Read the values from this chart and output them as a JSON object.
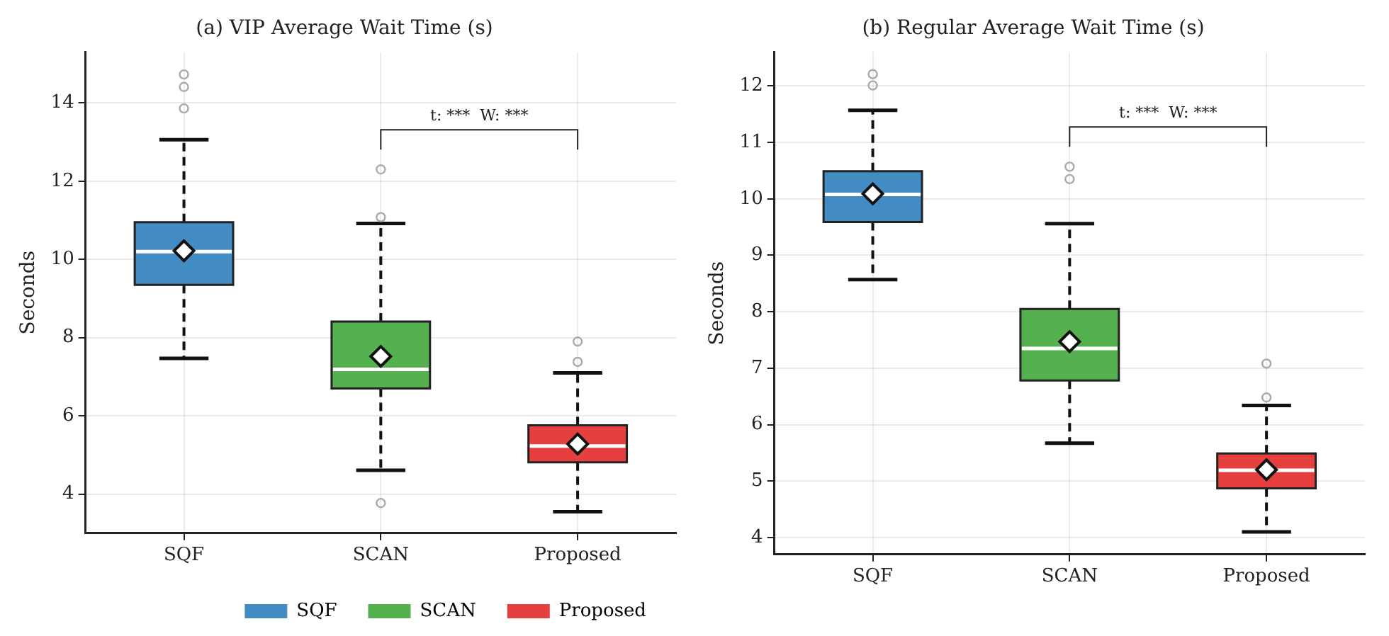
{
  "chart_data": [
    {
      "type": "box",
      "title": "(a) VIP Average Wait Time (s)",
      "ylabel": "Seconds",
      "categories": [
        "SQF",
        "SCAN",
        "Proposed"
      ],
      "series": [
        {
          "name": "SQF",
          "color": "#428bc3",
          "boxes": [
            {
              "low": 7.47,
              "q1": 9.35,
              "median": 10.2,
              "q3": 10.95,
              "high": 13.06,
              "mean": 10.22,
              "outliers": [
                14.73,
                14.41,
                13.86
              ]
            },
            null,
            null
          ]
        },
        {
          "name": "SCAN",
          "color": "#55b050",
          "boxes": [
            null,
            {
              "low": 4.61,
              "q1": 6.7,
              "median": 7.19,
              "q3": 8.41,
              "high": 10.92,
              "mean": 7.52,
              "outliers": [
                12.3,
                11.08,
                3.77
              ]
            },
            null
          ]
        },
        {
          "name": "Proposed",
          "color": "#e5403f",
          "boxes": [
            null,
            null,
            {
              "low": 3.55,
              "q1": 4.81,
              "median": 5.23,
              "q3": 5.76,
              "high": 7.1,
              "mean": 5.28,
              "outliers": [
                7.9,
                7.38
              ]
            }
          ]
        }
      ],
      "ylim": [
        3.0,
        15.3
      ],
      "yticks": [
        4,
        6,
        8,
        10,
        12,
        14
      ],
      "grid": true,
      "legend": "bottom",
      "annotations": [
        "t: ***  W: ***"
      ]
    },
    {
      "type": "box",
      "title": "(b) Regular Average Wait Time (s)",
      "ylabel": "Seconds",
      "categories": [
        "SQF",
        "SCAN",
        "Proposed"
      ],
      "series": [
        {
          "color": "#428bc3",
          "boxes": [
            {
              "low": 8.57,
              "q1": 9.59,
              "median": 10.08,
              "q3": 10.49,
              "high": 11.57,
              "mean": 10.09,
              "outliers": [
                12.21,
                12.01
              ]
            },
            null,
            null
          ]
        },
        {
          "color": "#55b050",
          "boxes": [
            null,
            {
              "low": 5.67,
              "q1": 6.78,
              "median": 7.35,
              "q3": 8.05,
              "high": 9.56,
              "mean": 7.47,
              "outliers": [
                10.57,
                10.35
              ]
            },
            null
          ]
        },
        {
          "color": "#e5403f",
          "boxes": [
            null,
            null,
            {
              "low": 4.1,
              "q1": 4.87,
              "median": 5.19,
              "q3": 5.49,
              "high": 6.34,
              "mean": 5.2,
              "outliers": [
                7.08,
                6.48
              ]
            }
          ]
        }
      ],
      "ylim": [
        3.7,
        12.6
      ],
      "yticks": [
        4,
        5,
        6,
        7,
        8,
        9,
        10,
        11,
        12
      ],
      "grid": true,
      "annotations": [
        "t: ***  W: ***"
      ]
    }
  ]
}
